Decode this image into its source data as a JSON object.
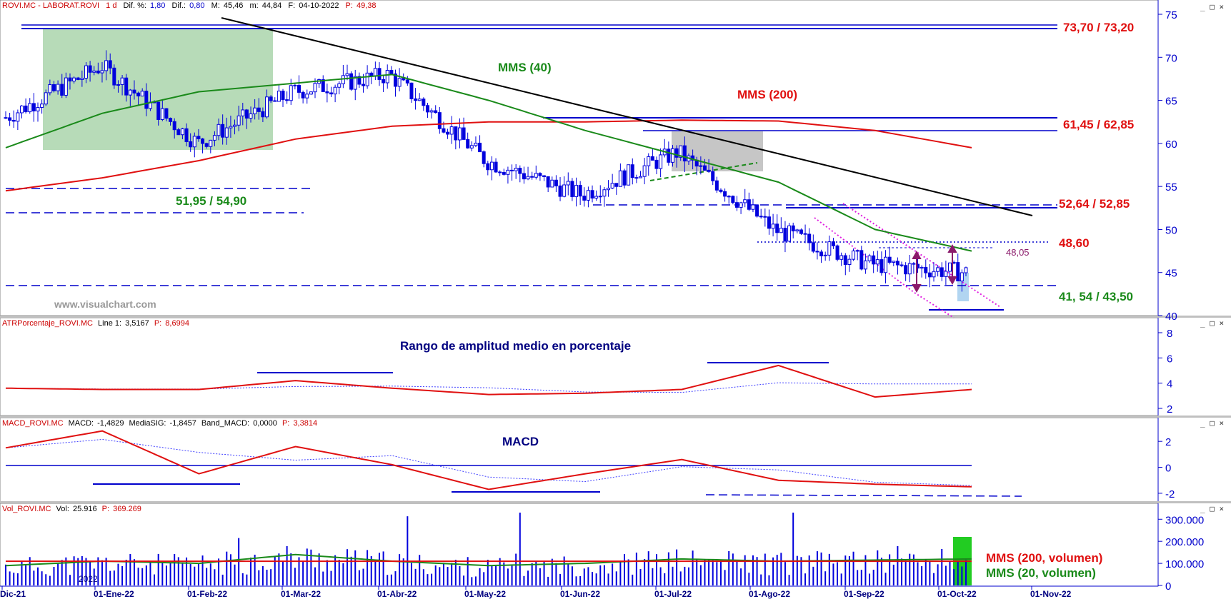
{
  "window": {
    "controls": [
      "_",
      "□",
      "×"
    ]
  },
  "panels": {
    "price": {
      "header": {
        "symbol": "ROVI.MC - LABORAT.ROVI",
        "period": "1 d",
        "dif_pct_label": "Dif. %:",
        "dif_pct": "1,80",
        "dif_label": "Dif.:",
        "dif": "0,80",
        "max_label": "M:",
        "max": "45,46",
        "min_label": "m:",
        "min": "44,84",
        "date_label": "F:",
        "date": "04-10-2022",
        "price_label": "P:",
        "price": "49,38"
      },
      "watermark": "www.visualchart.com",
      "y_ticks": [
        "75",
        "70",
        "65",
        "60",
        "55",
        "50",
        "45",
        "40"
      ]
    },
    "atr": {
      "header": {
        "name": "ATRPorcentaje_ROVI.MC",
        "line_label": "Line 1:",
        "line": "3,5167",
        "p_label": "P:",
        "p": "8,6994"
      },
      "y_ticks": [
        "8",
        "6",
        "4",
        "2"
      ]
    },
    "macd": {
      "header": {
        "name": "MACD_ROVI.MC",
        "macd_label": "MACD:",
        "macd": "-1,4829",
        "sig_label": "MediaSIG:",
        "sig": "-1,8457",
        "band_label": "Band_MACD:",
        "band": "0,0000",
        "p_label": "P:",
        "p": "3,3814"
      },
      "y_ticks": [
        "2",
        "0",
        "-2"
      ]
    },
    "volume": {
      "header": {
        "name": "Vol_ROVI.MC",
        "vol_label": "Vol:",
        "vol": "25.916",
        "p_label": "P:",
        "p": "369.269"
      },
      "y_ticks": [
        "300.000",
        "200.000",
        "100.000",
        "0"
      ],
      "year_mark": "2022"
    }
  },
  "x_axis": {
    "labels": [
      "Dic-21",
      "01-Ene-22",
      "01-Feb-22",
      "01-Mar-22",
      "01-Abr-22",
      "01-May-22",
      "01-Jun-22",
      "01-Jul-22",
      "01-Ago-22",
      "01-Sep-22",
      "01-Oct-22",
      "01-Nov-22"
    ]
  },
  "annotations": {
    "resistance_top": "73,70 / 73,20",
    "mms40": "MMS (40)",
    "mms200": "MMS (200)",
    "res_6145": "61,45 / 62,85",
    "support_5195": "51,95 / 54,90",
    "res_5264": "52,64 / 52,85",
    "level_4860": "48,60",
    "target_4805": "48,05",
    "support_4154": "41, 54 / 43,50",
    "atr_title": "Rango de amplitud medio en porcentaje",
    "macd_title": "MACD",
    "vol_mms200": "MMS (200, volumen)",
    "vol_mms20": "MMS (20, volumen)"
  },
  "colors": {
    "candle": "#0000dd",
    "axis_text": "#0000cc",
    "mms40": "#1a8a1a",
    "mms200": "#e01010",
    "trendline": "#000000",
    "channel": "#e020e0",
    "level_line": "#0000cc",
    "zone_green": "#9fcfa0",
    "zone_gray": "#a0a0a0",
    "highlight_blue": "#a9d0f0",
    "vol_highlight": "#22cc22",
    "arrow": "#8b1a6b",
    "atr_line": "#e01010",
    "atr_signal": "#4040ff"
  },
  "chart_data": [
    {
      "type": "candlestick",
      "title": "ROVI.MC - LABORAT.ROVI",
      "ylim": [
        40,
        75
      ],
      "x": [
        "Dic-21",
        "01-Ene-22",
        "01-Feb-22",
        "01-Mar-22",
        "01-Abr-22",
        "01-May-22",
        "01-Jun-22",
        "01-Jul-22",
        "01-Ago-22",
        "01-Sep-22",
        "01-Oct-22"
      ],
      "series": [
        {
          "name": "MMS (40)",
          "values": [
            59.5,
            63.5,
            66,
            67,
            68,
            65,
            61.5,
            58.5,
            55.5,
            50,
            47.5
          ]
        },
        {
          "name": "MMS (200)",
          "values": [
            54.5,
            56,
            58,
            60.5,
            62,
            62.5,
            62.5,
            62.7,
            62.6,
            61.5,
            59.5
          ]
        }
      ],
      "approx_close": [
        63,
        69,
        60,
        66,
        68,
        58,
        54,
        59,
        50,
        46,
        45
      ]
    },
    {
      "type": "line",
      "title": "ATRPorcentaje_ROVI.MC",
      "ylim": [
        2,
        8
      ],
      "x": [
        "Dic-21",
        "01-Ene-22",
        "01-Feb-22",
        "01-Mar-22",
        "01-Abr-22",
        "01-May-22",
        "01-Jun-22",
        "01-Jul-22",
        "01-Ago-22",
        "01-Sep-22",
        "01-Oct-22"
      ],
      "values": [
        3.6,
        3.5,
        3.5,
        4.2,
        3.6,
        3.1,
        3.2,
        3.5,
        5.4,
        2.9,
        3.5
      ]
    },
    {
      "type": "line",
      "title": "MACD_ROVI.MC",
      "ylim": [
        -2.5,
        3
      ],
      "x": [
        "Dic-21",
        "01-Ene-22",
        "01-Feb-22",
        "01-Mar-22",
        "01-Abr-22",
        "01-May-22",
        "01-Jun-22",
        "01-Jul-22",
        "01-Ago-22",
        "01-Sep-22",
        "01-Oct-22"
      ],
      "values": [
        1.5,
        2.8,
        -0.5,
        1.6,
        0.2,
        -1.7,
        -0.5,
        0.6,
        -1.0,
        -1.3,
        -1.5
      ]
    },
    {
      "type": "bar",
      "title": "Vol_ROVI.MC",
      "ylim": [
        0,
        330000
      ],
      "x": [
        "Dic-21",
        "01-Ene-22",
        "01-Feb-22",
        "01-Mar-22",
        "01-Abr-22",
        "01-May-22",
        "01-Jun-22",
        "01-Jul-22",
        "01-Ago-22",
        "01-Sep-22",
        "01-Oct-22"
      ],
      "values": [
        90000,
        110000,
        100000,
        140000,
        110000,
        90000,
        100000,
        120000,
        110000,
        115000,
        120000
      ]
    }
  ]
}
